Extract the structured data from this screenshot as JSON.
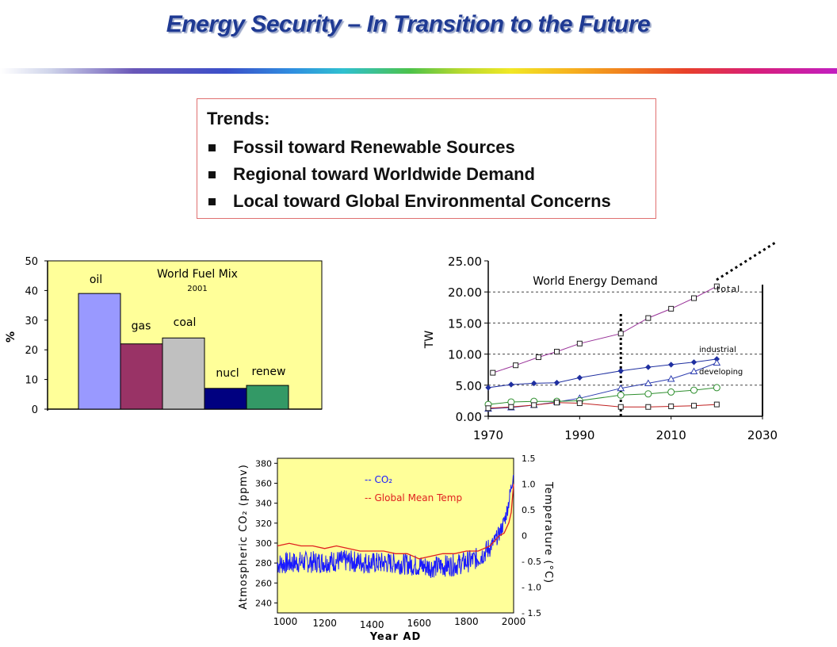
{
  "slide": {
    "title": "Energy Security – In Transition to the Future"
  },
  "trends": {
    "heading": "Trends:",
    "items": [
      "Fossil toward Renewable Sources",
      "Regional toward Worldwide Demand",
      "Local toward Global Environmental Concerns"
    ]
  },
  "colors": {
    "title": "#1f3a93",
    "plot_background": "#ffff99",
    "co2_line": "#1a1aff",
    "temp_line": "#e02020",
    "bars": [
      "#9999ff",
      "#993366",
      "#c0c0c0",
      "#000080",
      "#339966"
    ]
  },
  "chart_data": [
    {
      "type": "bar",
      "title": "World Fuel Mix",
      "subtitle": "2001",
      "categories": [
        "oil",
        "gas",
        "coal",
        "nucl",
        "renew"
      ],
      "values": [
        39,
        22,
        24,
        7,
        8
      ],
      "ylabel": "%",
      "xlabel": "",
      "ylim": [
        0,
        50
      ],
      "yticks": [
        "0",
        "10",
        "20",
        "30",
        "40",
        "50"
      ],
      "grid": false,
      "legend": "none"
    },
    {
      "type": "line",
      "title": "World Energy Demand",
      "ylabel": "TW",
      "xlabel": "",
      "xlim": [
        1970,
        2030
      ],
      "ylim": [
        0,
        25
      ],
      "xticks": [
        "1970",
        "1990",
        "2010",
        "2030"
      ],
      "yticks": [
        "0.00",
        "5.00",
        "10.00",
        "15.00",
        "20.00",
        "25.00"
      ],
      "grid": true,
      "marker_year": 1999,
      "series": [
        {
          "name": "total",
          "color": "#993399",
          "marker": "square",
          "x": [
            1971,
            1976,
            1981,
            1985,
            1990,
            1999,
            2005,
            2010,
            2015,
            2020
          ],
          "y": [
            7.0,
            8.2,
            9.5,
            10.4,
            11.7,
            13.3,
            15.8,
            17.3,
            19.0,
            20.9
          ]
        },
        {
          "name": "industrial",
          "color": "#1f2fa0",
          "marker": "diamond",
          "x": [
            1970,
            1975,
            1980,
            1985,
            1990,
            1999,
            2005,
            2010,
            2015,
            2020
          ],
          "y": [
            4.6,
            5.1,
            5.3,
            5.4,
            6.2,
            7.3,
            7.9,
            8.3,
            8.7,
            9.2
          ]
        },
        {
          "name": "developing",
          "color": "#2f3fb0",
          "marker": "triangle",
          "x": [
            1970,
            1975,
            1980,
            1985,
            1990,
            1999,
            2005,
            2010,
            2015,
            2020
          ],
          "y": [
            1.2,
            1.4,
            1.8,
            2.3,
            2.9,
            4.5,
            5.3,
            6.0,
            7.2,
            8.6
          ]
        },
        {
          "name": "",
          "color": "#2f8f2f",
          "marker": "circle",
          "x": [
            1970,
            1975,
            1980,
            1985,
            1990,
            1999,
            2005,
            2010,
            2015,
            2020
          ],
          "y": [
            1.9,
            2.3,
            2.4,
            2.4,
            2.5,
            3.4,
            3.6,
            3.9,
            4.2,
            4.6
          ]
        },
        {
          "name": "",
          "color": "#c02020",
          "marker": "square",
          "x": [
            1970,
            1975,
            1980,
            1985,
            1990,
            1999,
            2005,
            2010,
            2015,
            2020
          ],
          "y": [
            1.3,
            1.5,
            1.8,
            2.2,
            2.1,
            1.5,
            1.5,
            1.6,
            1.7,
            1.9
          ]
        }
      ]
    },
    {
      "type": "line",
      "title": "",
      "xlabel": "Year AD",
      "ylabel": "Atmospheric CO₂ (ppmv)",
      "y2label": "Temperature (°C)",
      "xlim": [
        1000,
        2000
      ],
      "ylim": [
        230,
        385
      ],
      "y2lim": [
        -1.5,
        1.5
      ],
      "xticks": [
        "1000",
        "1200",
        "1400",
        "1600",
        "1800",
        "2000"
      ],
      "yticks": [
        "240",
        "260",
        "280",
        "300",
        "320",
        "340",
        "360",
        "380"
      ],
      "y2ticks": [
        "- 1.5",
        "- 1.0",
        "- 0.5",
        "0",
        "0.5",
        "1.0",
        "1.5"
      ],
      "legend": "top-right",
      "series": [
        {
          "name": "CO₂",
          "axis": "left",
          "color": "#1a1aff",
          "x": [
            1000,
            1050,
            1100,
            1150,
            1200,
            1250,
            1300,
            1350,
            1400,
            1450,
            1500,
            1550,
            1600,
            1650,
            1700,
            1750,
            1800,
            1850,
            1880,
            1900,
            1920,
            1940,
            1950,
            1960,
            1970,
            1980,
            1990,
            2000
          ],
          "y": [
            279,
            280,
            281,
            281,
            281,
            282,
            282,
            281,
            280,
            280,
            280,
            279,
            277,
            276,
            277,
            278,
            281,
            285,
            291,
            296,
            302,
            310,
            315,
            322,
            330,
            342,
            356,
            372
          ]
        },
        {
          "name": "Global Mean Temp",
          "axis": "right",
          "color": "#e02020",
          "x": [
            1000,
            1050,
            1100,
            1150,
            1200,
            1250,
            1300,
            1350,
            1400,
            1450,
            1500,
            1550,
            1600,
            1650,
            1700,
            1750,
            1800,
            1850,
            1900,
            1920,
            1940,
            1960,
            1980,
            1990,
            2000
          ],
          "y": [
            -0.2,
            -0.15,
            -0.2,
            -0.2,
            -0.25,
            -0.2,
            -0.25,
            -0.3,
            -0.3,
            -0.3,
            -0.35,
            -0.35,
            -0.45,
            -0.4,
            -0.35,
            -0.35,
            -0.3,
            -0.3,
            -0.2,
            -0.1,
            0.0,
            0.05,
            0.25,
            0.45,
            1.0
          ]
        }
      ]
    }
  ]
}
